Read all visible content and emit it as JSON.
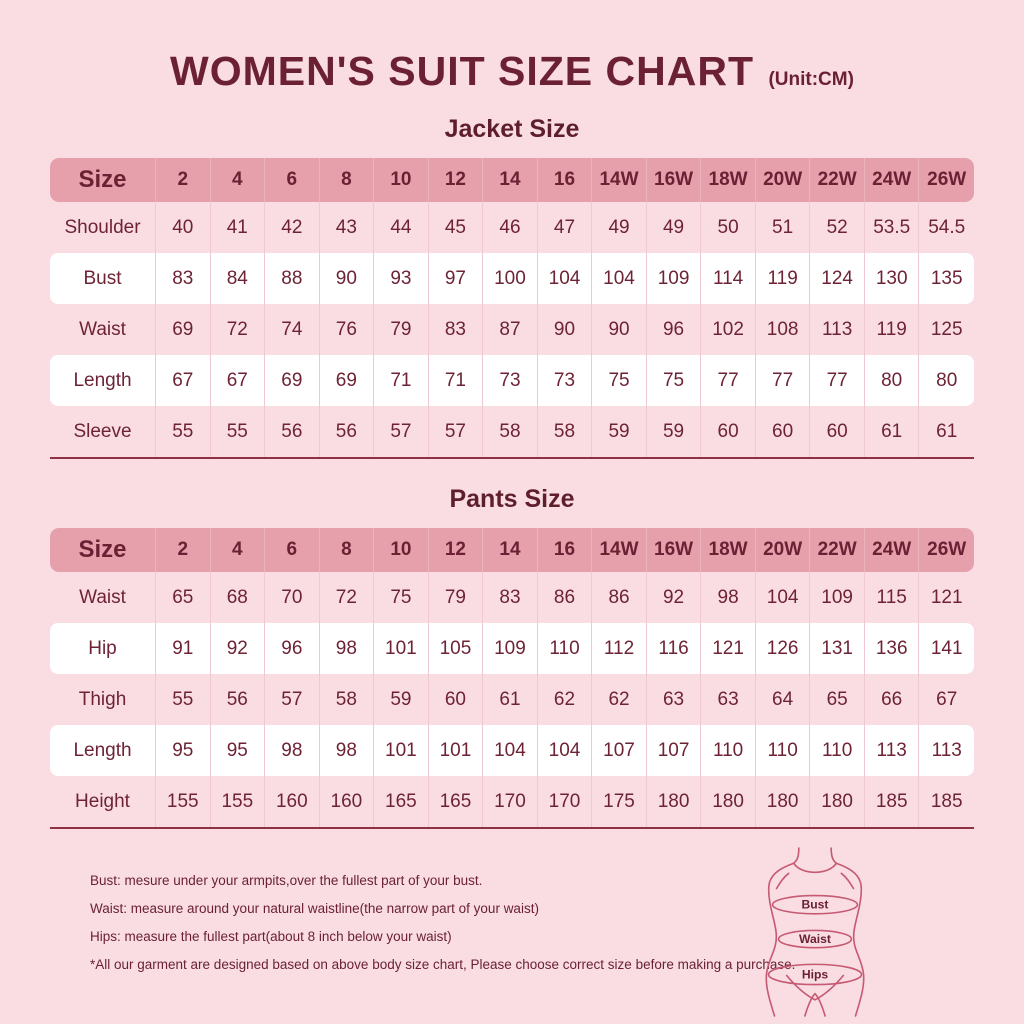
{
  "title": {
    "main": "WOMEN'S SUIT SIZE CHART",
    "unit": "(Unit:CM)"
  },
  "sections": {
    "jacket_heading": "Jacket Size",
    "pants_heading": "Pants Size"
  },
  "chart_data": [
    {
      "type": "table",
      "title": "Jacket Size",
      "unit": "CM",
      "columns": [
        "Size",
        "2",
        "4",
        "6",
        "8",
        "10",
        "12",
        "14",
        "16",
        "14W",
        "16W",
        "18W",
        "20W",
        "22W",
        "24W",
        "26W"
      ],
      "rows": [
        {
          "label": "Shoulder",
          "values": [
            "40",
            "41",
            "42",
            "43",
            "44",
            "45",
            "46",
            "47",
            "49",
            "49",
            "50",
            "51",
            "52",
            "53.5",
            "54.5"
          ]
        },
        {
          "label": "Bust",
          "values": [
            "83",
            "84",
            "88",
            "90",
            "93",
            "97",
            "100",
            "104",
            "104",
            "109",
            "114",
            "119",
            "124",
            "130",
            "135"
          ]
        },
        {
          "label": "Waist",
          "values": [
            "69",
            "72",
            "74",
            "76",
            "79",
            "83",
            "87",
            "90",
            "90",
            "96",
            "102",
            "108",
            "113",
            "119",
            "125"
          ]
        },
        {
          "label": "Length",
          "values": [
            "67",
            "67",
            "69",
            "69",
            "71",
            "71",
            "73",
            "73",
            "75",
            "75",
            "77",
            "77",
            "77",
            "80",
            "80"
          ]
        },
        {
          "label": "Sleeve",
          "values": [
            "55",
            "55",
            "56",
            "56",
            "57",
            "57",
            "58",
            "58",
            "59",
            "59",
            "60",
            "60",
            "60",
            "61",
            "61"
          ]
        }
      ]
    },
    {
      "type": "table",
      "title": "Pants Size",
      "unit": "CM",
      "columns": [
        "Size",
        "2",
        "4",
        "6",
        "8",
        "10",
        "12",
        "14",
        "16",
        "14W",
        "16W",
        "18W",
        "20W",
        "22W",
        "24W",
        "26W"
      ],
      "rows": [
        {
          "label": "Waist",
          "values": [
            "65",
            "68",
            "70",
            "72",
            "75",
            "79",
            "83",
            "86",
            "86",
            "92",
            "98",
            "104",
            "109",
            "115",
            "121"
          ]
        },
        {
          "label": "Hip",
          "values": [
            "91",
            "92",
            "96",
            "98",
            "101",
            "105",
            "109",
            "110",
            "112",
            "116",
            "121",
            "126",
            "131",
            "136",
            "141"
          ]
        },
        {
          "label": "Thigh",
          "values": [
            "55",
            "56",
            "57",
            "58",
            "59",
            "60",
            "61",
            "62",
            "62",
            "63",
            "63",
            "64",
            "65",
            "66",
            "67"
          ]
        },
        {
          "label": "Length",
          "values": [
            "95",
            "95",
            "98",
            "98",
            "101",
            "101",
            "104",
            "104",
            "107",
            "107",
            "110",
            "110",
            "110",
            "113",
            "113"
          ]
        },
        {
          "label": "Height",
          "values": [
            "155",
            "155",
            "160",
            "160",
            "165",
            "165",
            "170",
            "170",
            "175",
            "180",
            "180",
            "180",
            "180",
            "185",
            "185"
          ]
        }
      ]
    }
  ],
  "notes": [
    "Bust: mesure under your armpits,over the fullest part of your bust.",
    "Waist: measure around your natural waistline(the narrow part of your waist)",
    "Hips: measure the fullest part(about 8 inch below your waist)",
    "*All our garment are designed based on above body size chart, Please choose correct size before making a purchase."
  ],
  "figure": {
    "bust_label": "Bust",
    "waist_label": "Waist",
    "hips_label": "Hips"
  },
  "colors": {
    "background": "#f9dde3",
    "header_row": "#e5a0ac",
    "white_row": "#ffffff",
    "text": "#6b2133",
    "table_bottom_border": "#8c3242",
    "cell_divider": "#efc9d0",
    "figure_stroke": "#c65a72"
  }
}
